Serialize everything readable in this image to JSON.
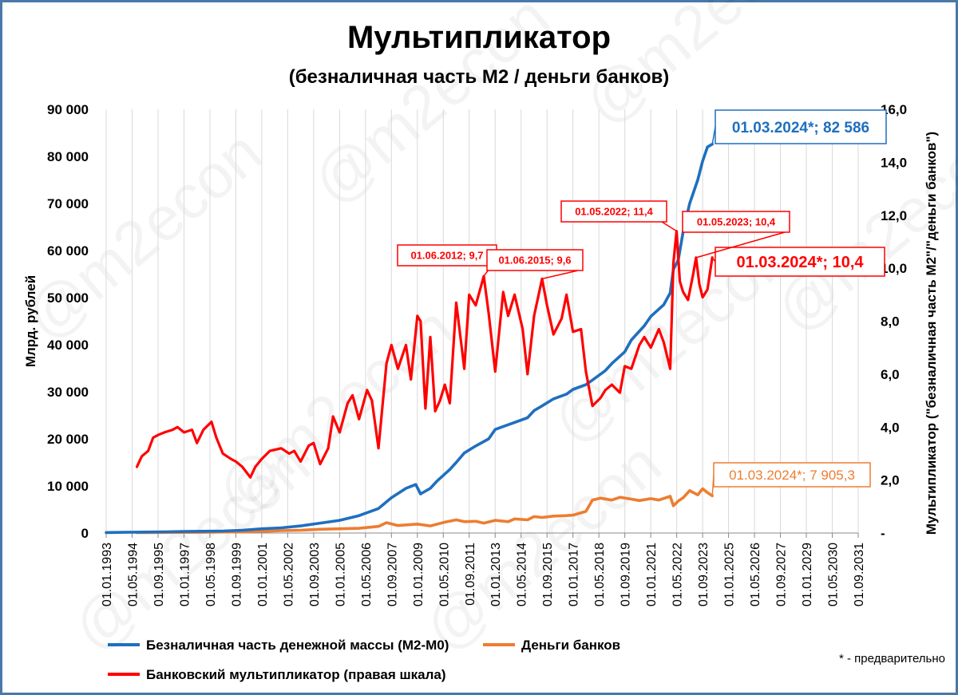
{
  "title": "Мультипликатор",
  "subtitle": "(безналичная часть М2 / деньги банков)",
  "footnote": "* - предварительно",
  "watermark": "@m2econ",
  "chart_data": {
    "type": "line",
    "y_left": {
      "label": "Млрд. рублей",
      "min": 0,
      "max": 90000,
      "ticks": [
        0,
        10000,
        20000,
        30000,
        40000,
        50000,
        60000,
        70000,
        80000,
        90000
      ],
      "tick_labels": [
        "0",
        "10 000",
        "20 000",
        "30 000",
        "40 000",
        "50 000",
        "60 000",
        "70 000",
        "80 000",
        "90 000"
      ]
    },
    "y_right": {
      "label": "Мультипликатор (\"безналичная часть М2\"/\"деньги банков\")",
      "min": 0,
      "max": 16,
      "ticks": [
        0,
        2,
        4,
        6,
        8,
        10,
        12,
        14,
        16
      ],
      "tick_labels": [
        "-",
        "2,0",
        "4,0",
        "6,0",
        "8,0",
        "10,0",
        "12,0",
        "14,0",
        "16,0"
      ]
    },
    "x_axis": {
      "min": "1993-01-01",
      "max": "2031-09-01",
      "tick_labels": [
        "01.01.1993",
        "01.05.1994",
        "01.09.1995",
        "01.01.1997",
        "01.05.1998",
        "01.09.1999",
        "01.01.2001",
        "01.05.2002",
        "01.09.2003",
        "01.01.2005",
        "01.05.2006",
        "01.09.2007",
        "01.01.2009",
        "01.05.2010",
        "01.09.2011",
        "01.01.2013",
        "01.05.2014",
        "01.09.2015",
        "01.01.2017",
        "01.05.2018",
        "01.09.2019",
        "01.01.2021",
        "01.05.2022",
        "01.09.2023",
        "01.01.2025",
        "01.05.2026",
        "01.09.2027",
        "01.01.2029",
        "01.05.2030",
        "01.09.2031"
      ]
    },
    "grid": "vertical",
    "legend_position": "bottom",
    "series": [
      {
        "name": "Безналичная часть денежной массы (М2-М0)",
        "axis": "left",
        "color": "#1f6fbf",
        "points": [
          [
            "1993-01-01",
            100
          ],
          [
            "1994-01-01",
            150
          ],
          [
            "1995-01-01",
            200
          ],
          [
            "1996-01-01",
            250
          ],
          [
            "1997-01-01",
            320
          ],
          [
            "1998-01-01",
            380
          ],
          [
            "1999-01-01",
            430
          ],
          [
            "2000-01-01",
            600
          ],
          [
            "2001-01-01",
            900
          ],
          [
            "2002-01-01",
            1100
          ],
          [
            "2003-01-01",
            1500
          ],
          [
            "2004-01-01",
            2100
          ],
          [
            "2005-01-01",
            2700
          ],
          [
            "2006-01-01",
            3700
          ],
          [
            "2007-01-01",
            5200
          ],
          [
            "2007-09-01",
            7500
          ],
          [
            "2008-06-01",
            9500
          ],
          [
            "2008-12-01",
            10300
          ],
          [
            "2009-03-01",
            8300
          ],
          [
            "2009-09-01",
            9500
          ],
          [
            "2010-01-01",
            11000
          ],
          [
            "2010-09-01",
            13500
          ],
          [
            "2011-01-01",
            15000
          ],
          [
            "2011-06-01",
            17000
          ],
          [
            "2012-01-01",
            18500
          ],
          [
            "2012-09-01",
            20000
          ],
          [
            "2013-01-01",
            22000
          ],
          [
            "2013-09-01",
            23000
          ],
          [
            "2014-01-01",
            23500
          ],
          [
            "2014-09-01",
            24500
          ],
          [
            "2015-01-01",
            26000
          ],
          [
            "2015-06-01",
            27000
          ],
          [
            "2016-01-01",
            28500
          ],
          [
            "2016-09-01",
            29500
          ],
          [
            "2017-01-01",
            30500
          ],
          [
            "2017-09-01",
            31500
          ],
          [
            "2018-01-01",
            32500
          ],
          [
            "2018-09-01",
            34500
          ],
          [
            "2019-01-01",
            36000
          ],
          [
            "2019-09-01",
            38500
          ],
          [
            "2020-01-01",
            41000
          ],
          [
            "2020-09-01",
            44000
          ],
          [
            "2021-01-01",
            46000
          ],
          [
            "2021-09-01",
            48500
          ],
          [
            "2022-01-01",
            51000
          ],
          [
            "2022-03-01",
            56000
          ],
          [
            "2022-06-01",
            58000
          ],
          [
            "2022-09-01",
            64000
          ],
          [
            "2023-01-01",
            70000
          ],
          [
            "2023-06-01",
            75000
          ],
          [
            "2023-09-01",
            79000
          ],
          [
            "2023-12-01",
            82000
          ],
          [
            "2024-03-01",
            82586
          ]
        ]
      },
      {
        "name": "Деньги банков",
        "axis": "left",
        "color": "#ed7d31",
        "points": [
          [
            "1994-08-01",
            80
          ],
          [
            "1996-01-01",
            120
          ],
          [
            "1998-01-01",
            160
          ],
          [
            "2000-01-01",
            260
          ],
          [
            "2001-01-01",
            350
          ],
          [
            "2002-01-01",
            500
          ],
          [
            "2003-01-01",
            600
          ],
          [
            "2004-01-01",
            800
          ],
          [
            "2005-01-01",
            900
          ],
          [
            "2006-01-01",
            1000
          ],
          [
            "2007-01-01",
            1400
          ],
          [
            "2007-06-01",
            2200
          ],
          [
            "2008-01-01",
            1600
          ],
          [
            "2008-09-01",
            1800
          ],
          [
            "2009-01-01",
            1900
          ],
          [
            "2009-09-01",
            1500
          ],
          [
            "2010-06-01",
            2300
          ],
          [
            "2011-01-01",
            2800
          ],
          [
            "2011-06-01",
            2400
          ],
          [
            "2012-01-01",
            2500
          ],
          [
            "2012-06-01",
            2100
          ],
          [
            "2013-01-01",
            2700
          ],
          [
            "2013-09-01",
            2400
          ],
          [
            "2014-01-01",
            3000
          ],
          [
            "2014-09-01",
            2800
          ],
          [
            "2015-01-01",
            3500
          ],
          [
            "2015-06-01",
            3300
          ],
          [
            "2016-01-01",
            3600
          ],
          [
            "2016-09-01",
            3700
          ],
          [
            "2017-01-01",
            3800
          ],
          [
            "2017-09-01",
            4600
          ],
          [
            "2018-01-01",
            7000
          ],
          [
            "2018-06-01",
            7400
          ],
          [
            "2019-01-01",
            7000
          ],
          [
            "2019-06-01",
            7600
          ],
          [
            "2020-01-01",
            7200
          ],
          [
            "2020-06-01",
            6900
          ],
          [
            "2021-01-01",
            7300
          ],
          [
            "2021-06-01",
            7000
          ],
          [
            "2022-01-01",
            7800
          ],
          [
            "2022-03-01",
            5800
          ],
          [
            "2022-06-01",
            6800
          ],
          [
            "2022-09-01",
            7500
          ],
          [
            "2023-01-01",
            9000
          ],
          [
            "2023-06-01",
            8100
          ],
          [
            "2023-09-01",
            9400
          ],
          [
            "2023-12-01",
            8600
          ],
          [
            "2024-03-01",
            7905.3
          ]
        ]
      },
      {
        "name": "Банковский мультипликатор (правая шкала)",
        "axis": "right",
        "color": "#ff0000",
        "points": [
          [
            "1994-08-01",
            2.5
          ],
          [
            "1994-11-01",
            2.9
          ],
          [
            "1995-03-01",
            3.1
          ],
          [
            "1995-06-01",
            3.6
          ],
          [
            "1995-09-01",
            3.7
          ],
          [
            "1996-01-01",
            3.8
          ],
          [
            "1996-06-01",
            3.9
          ],
          [
            "1996-09-01",
            4.0
          ],
          [
            "1997-01-01",
            3.8
          ],
          [
            "1997-06-01",
            3.9
          ],
          [
            "1997-09-01",
            3.4
          ],
          [
            "1998-01-01",
            3.9
          ],
          [
            "1998-06-01",
            4.2
          ],
          [
            "1998-09-01",
            3.6
          ],
          [
            "1999-01-01",
            3.0
          ],
          [
            "1999-06-01",
            2.8
          ],
          [
            "1999-09-01",
            2.7
          ],
          [
            "2000-01-01",
            2.5
          ],
          [
            "2000-06-01",
            2.1
          ],
          [
            "2000-09-01",
            2.5
          ],
          [
            "2001-01-01",
            2.8
          ],
          [
            "2001-06-01",
            3.1
          ],
          [
            "2002-01-01",
            3.2
          ],
          [
            "2002-06-01",
            3.0
          ],
          [
            "2002-09-01",
            3.1
          ],
          [
            "2003-01-01",
            2.7
          ],
          [
            "2003-06-01",
            3.3
          ],
          [
            "2003-09-01",
            3.4
          ],
          [
            "2004-01-01",
            2.6
          ],
          [
            "2004-06-01",
            3.2
          ],
          [
            "2004-09-01",
            4.4
          ],
          [
            "2005-01-01",
            3.8
          ],
          [
            "2005-06-01",
            4.9
          ],
          [
            "2005-09-01",
            5.2
          ],
          [
            "2006-01-01",
            4.3
          ],
          [
            "2006-06-01",
            5.4
          ],
          [
            "2006-09-01",
            5.0
          ],
          [
            "2007-01-01",
            3.2
          ],
          [
            "2007-06-01",
            6.4
          ],
          [
            "2007-09-01",
            7.1
          ],
          [
            "2008-01-01",
            6.2
          ],
          [
            "2008-06-01",
            7.1
          ],
          [
            "2008-09-01",
            5.8
          ],
          [
            "2009-01-01",
            8.2
          ],
          [
            "2009-03-01",
            8.0
          ],
          [
            "2009-06-01",
            4.7
          ],
          [
            "2009-09-01",
            7.4
          ],
          [
            "2009-12-01",
            4.6
          ],
          [
            "2010-03-01",
            5.0
          ],
          [
            "2010-06-01",
            5.6
          ],
          [
            "2010-09-01",
            4.9
          ],
          [
            "2011-01-01",
            8.7
          ],
          [
            "2011-06-01",
            6.2
          ],
          [
            "2011-09-01",
            9.0
          ],
          [
            "2012-01-01",
            8.6
          ],
          [
            "2012-06-01",
            9.7
          ],
          [
            "2012-09-01",
            8.3
          ],
          [
            "2013-01-01",
            6.1
          ],
          [
            "2013-06-01",
            9.1
          ],
          [
            "2013-09-01",
            8.2
          ],
          [
            "2014-01-01",
            9.0
          ],
          [
            "2014-06-01",
            7.7
          ],
          [
            "2014-09-01",
            6.0
          ],
          [
            "2015-01-01",
            8.2
          ],
          [
            "2015-06-01",
            9.6
          ],
          [
            "2015-09-01",
            8.6
          ],
          [
            "2016-01-01",
            7.5
          ],
          [
            "2016-06-01",
            8.1
          ],
          [
            "2016-09-01",
            9.0
          ],
          [
            "2017-01-01",
            7.6
          ],
          [
            "2017-06-01",
            7.7
          ],
          [
            "2017-09-01",
            6.1
          ],
          [
            "2018-01-01",
            4.8
          ],
          [
            "2018-06-01",
            5.1
          ],
          [
            "2018-09-01",
            5.4
          ],
          [
            "2019-01-01",
            5.6
          ],
          [
            "2019-06-01",
            5.3
          ],
          [
            "2019-09-01",
            6.3
          ],
          [
            "2020-01-01",
            6.2
          ],
          [
            "2020-06-01",
            7.1
          ],
          [
            "2020-09-01",
            7.4
          ],
          [
            "2021-01-01",
            7.0
          ],
          [
            "2021-06-01",
            7.7
          ],
          [
            "2021-09-01",
            7.2
          ],
          [
            "2022-01-01",
            6.2
          ],
          [
            "2022-03-01",
            10.2
          ],
          [
            "2022-05-01",
            11.4
          ],
          [
            "2022-07-01",
            9.5
          ],
          [
            "2022-09-01",
            9.1
          ],
          [
            "2022-12-01",
            8.8
          ],
          [
            "2023-03-01",
            9.7
          ],
          [
            "2023-05-01",
            10.4
          ],
          [
            "2023-07-01",
            9.4
          ],
          [
            "2023-09-01",
            8.9
          ],
          [
            "2023-12-01",
            9.2
          ],
          [
            "2024-03-01",
            10.4
          ]
        ]
      }
    ],
    "annotations": [
      {
        "text": "01.03.2024*; 82 586",
        "series": 0,
        "date": "2024-03-01",
        "color": "#1f6fbf"
      },
      {
        "text": "01.03.2024*;  7 905,3",
        "series": 1,
        "date": "2024-03-01",
        "color": "#ed7d31"
      },
      {
        "text": "01.03.2024*;   10,4",
        "series": 2,
        "date": "2024-03-01",
        "color": "#ff0000"
      },
      {
        "text": "01.06.2012;  9,7",
        "series": 2,
        "date": "2012-06-01",
        "color": "#ff0000"
      },
      {
        "text": "01.06.2015;  9,6",
        "series": 2,
        "date": "2015-06-01",
        "color": "#ff0000"
      },
      {
        "text": "01.05.2022;  11,4",
        "series": 2,
        "date": "2022-05-01",
        "color": "#ff0000"
      },
      {
        "text": "01.05.2023;  10,4",
        "series": 2,
        "date": "2023-05-01",
        "color": "#ff0000"
      }
    ]
  }
}
